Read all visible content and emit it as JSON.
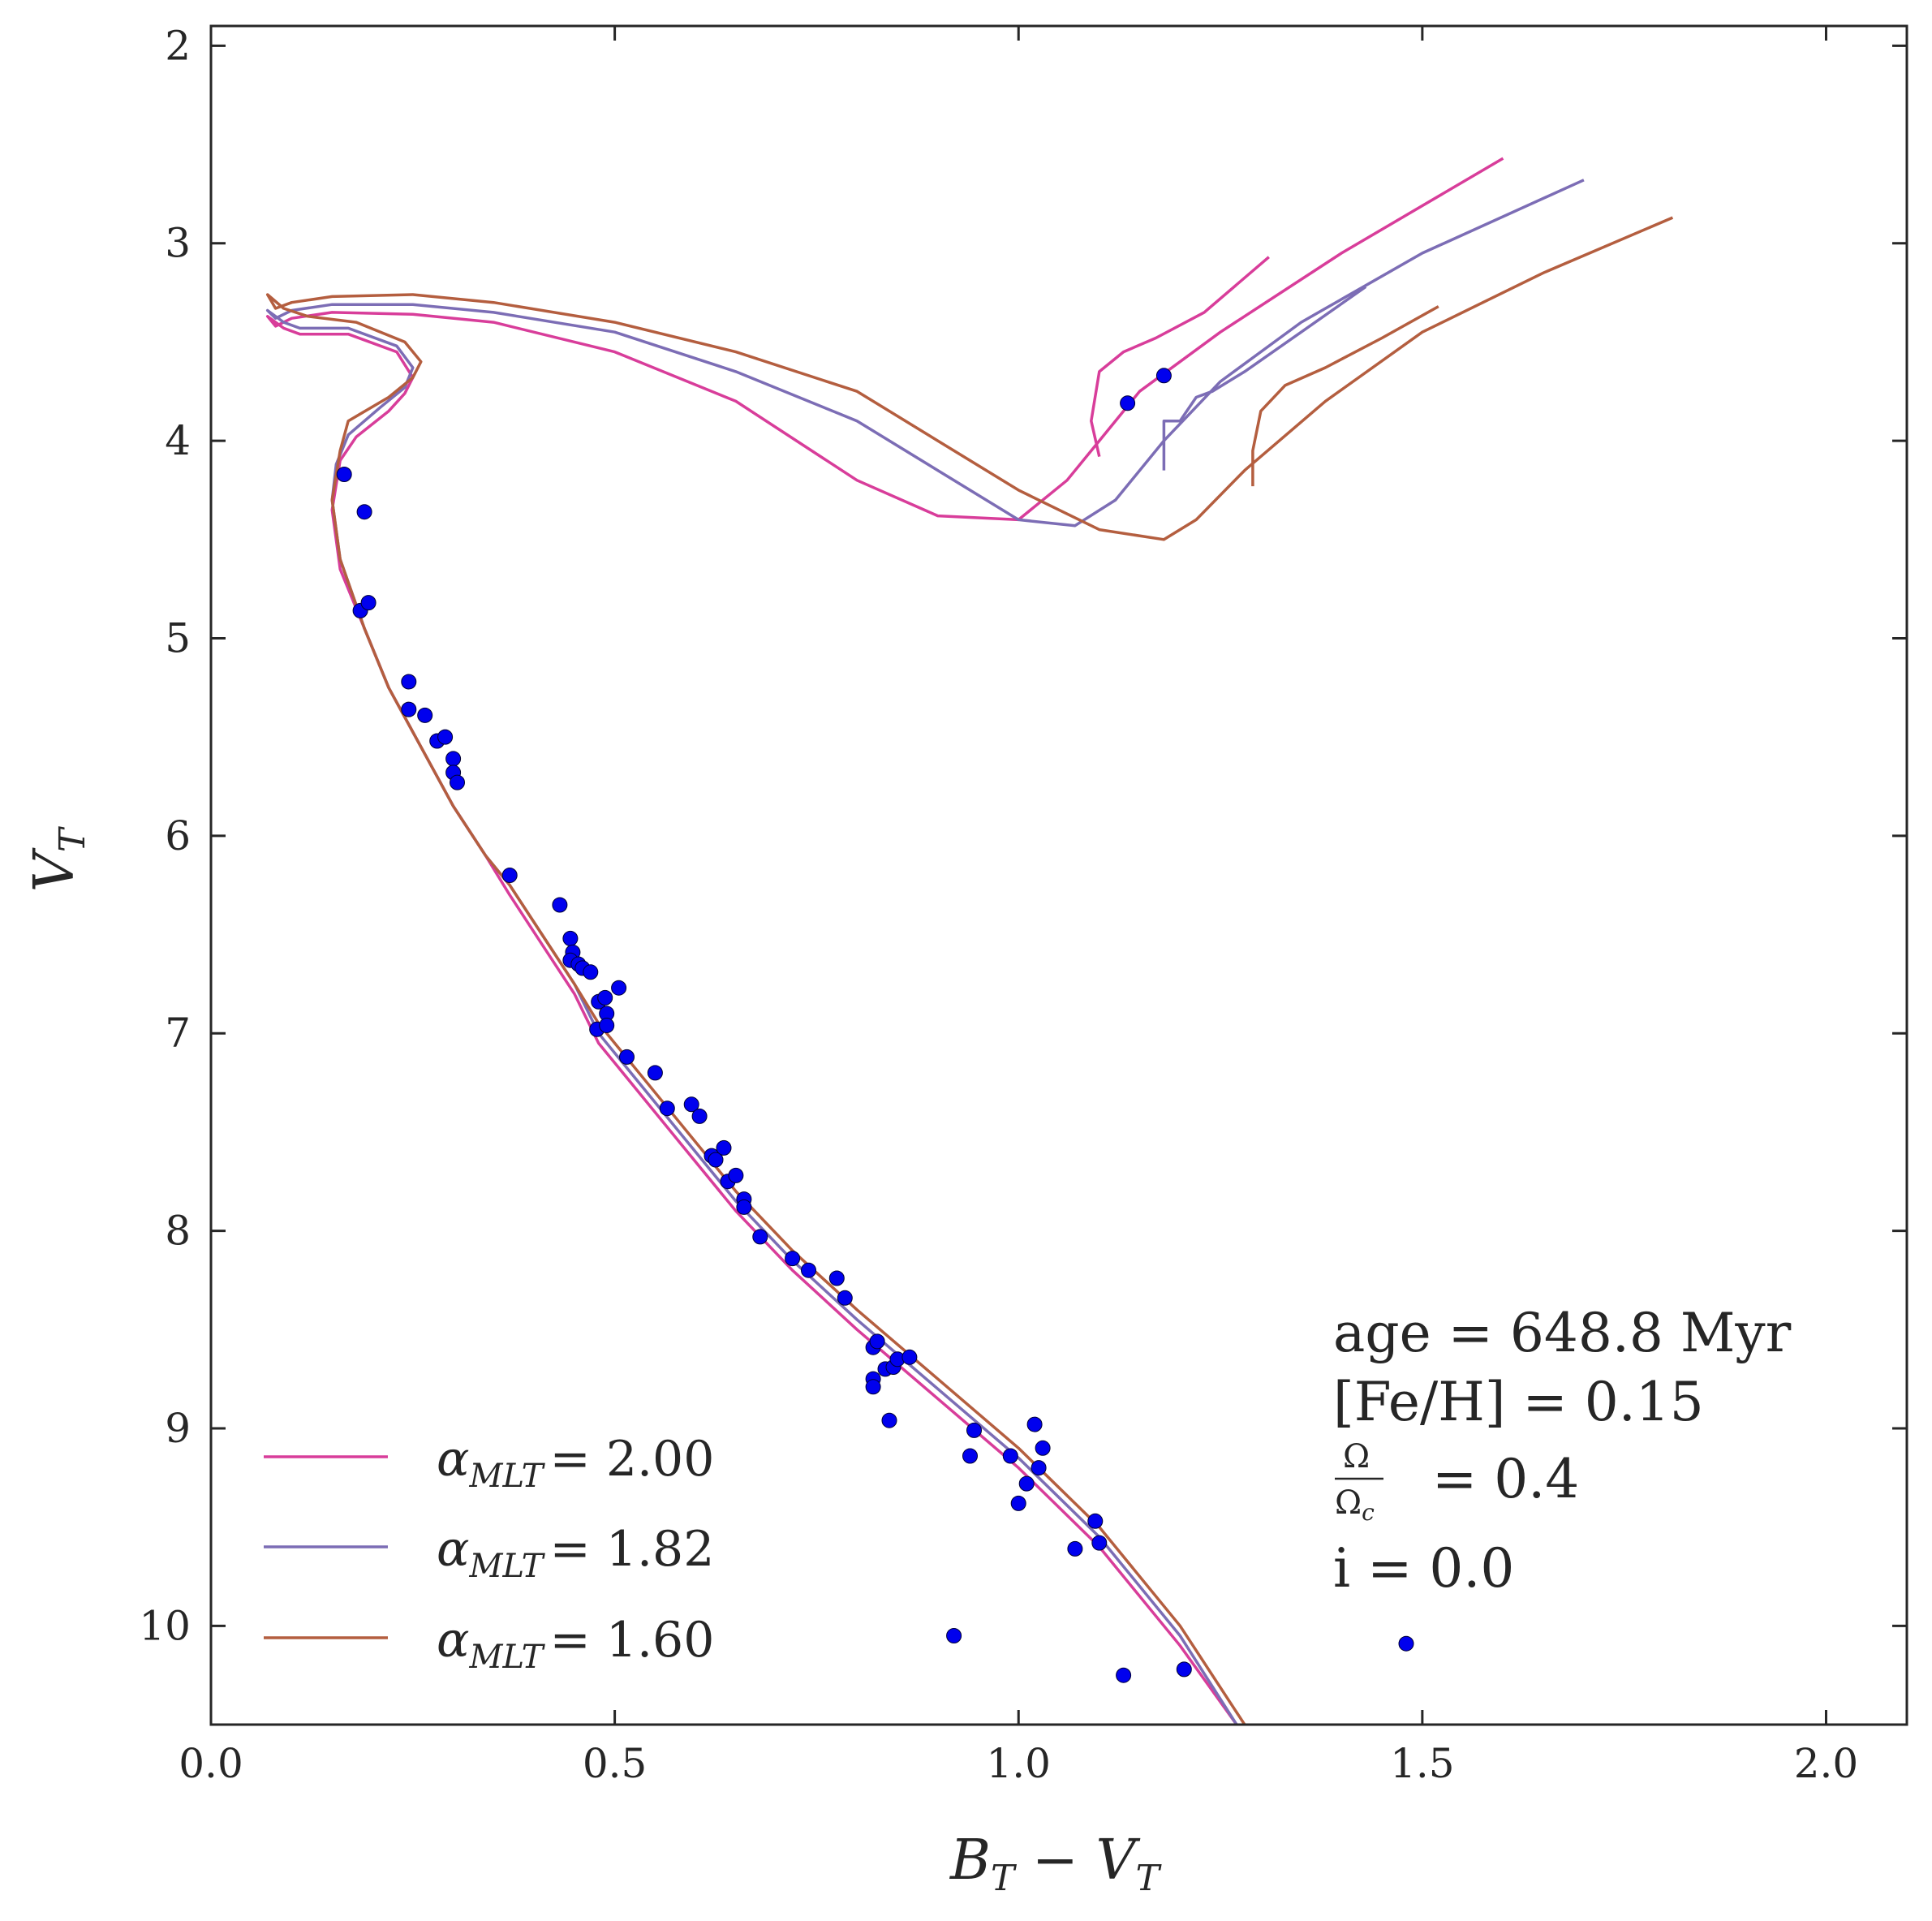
{
  "chart_data": {
    "type": "scatter",
    "xlabel": "B_T − V_T",
    "ylabel": "V_T",
    "xlim": [
      0.0,
      2.1
    ],
    "ylim": [
      10.5,
      1.9
    ],
    "y_inverted": true,
    "xticks": [
      0.0,
      0.5,
      1.0,
      1.5,
      2.0
    ],
    "xtick_labels": [
      "0.0",
      "0.5",
      "1.0",
      "1.5",
      "2.0"
    ],
    "yticks": [
      2,
      3,
      4,
      5,
      6,
      7,
      8,
      9,
      10
    ],
    "ytick_labels": [
      "2",
      "3",
      "4",
      "5",
      "6",
      "7",
      "8",
      "9",
      "10"
    ],
    "grid": false,
    "legend_position": "bottom-left",
    "annotations": {
      "age": "age = 648.8 Myr",
      "feh": "[Fe/H] = 0.15",
      "omega_num": "Ω",
      "omega_den": "Ω",
      "omega_den_sub": "c",
      "omega_value": "= 0.4",
      "inclination": "i = 0.0"
    },
    "series": [
      {
        "name": "α_MLT = 2.00",
        "legend_alpha": "α",
        "legend_sub": "MLT",
        "legend_value": "= 2.00",
        "color": "#d83d9a",
        "kind": "line",
        "x": [
          1.6,
          1.4,
          1.25,
          1.15,
          1.1,
          1.06,
          1.0,
          0.9,
          0.8,
          0.65,
          0.5,
          0.35,
          0.25,
          0.15,
          0.1,
          0.08,
          0.07,
          0.09,
          0.11,
          0.17,
          0.23,
          0.25,
          0.24,
          0.22,
          0.18,
          0.16,
          0.15,
          0.16,
          0.19,
          0.22,
          0.26,
          0.3,
          0.34,
          0.37,
          0.41,
          0.45,
          0.48,
          0.52,
          0.58,
          0.65,
          0.72,
          0.8,
          0.9,
          1.0,
          1.1,
          1.2,
          1.27
        ],
        "y": [
          2.57,
          3.05,
          3.45,
          3.75,
          4.0,
          4.2,
          4.4,
          4.38,
          4.2,
          3.8,
          3.55,
          3.4,
          3.36,
          3.35,
          3.38,
          3.42,
          3.37,
          3.43,
          3.46,
          3.46,
          3.55,
          3.68,
          3.76,
          3.85,
          3.98,
          4.1,
          4.35,
          4.65,
          4.95,
          5.25,
          5.55,
          5.85,
          6.1,
          6.3,
          6.55,
          6.8,
          7.05,
          7.25,
          7.55,
          7.9,
          8.2,
          8.5,
          8.85,
          9.2,
          9.6,
          10.1,
          10.5
        ],
        "branch_x": [
          1.1,
          1.09,
          1.1,
          1.13,
          1.17,
          1.23,
          1.31
        ],
        "branch_y": [
          4.08,
          3.9,
          3.65,
          3.55,
          3.48,
          3.35,
          3.07
        ]
      },
      {
        "name": "α_MLT = 1.82",
        "legend_alpha": "α",
        "legend_sub": "MLT",
        "legend_value": "= 1.82",
        "color": "#7c6db5",
        "kind": "line",
        "x": [
          1.7,
          1.5,
          1.35,
          1.25,
          1.18,
          1.12,
          1.07,
          1.0,
          0.9,
          0.8,
          0.65,
          0.5,
          0.35,
          0.25,
          0.15,
          0.1,
          0.08,
          0.07,
          0.09,
          0.11,
          0.17,
          0.23,
          0.25,
          0.24,
          0.21,
          0.17,
          0.155,
          0.15,
          0.16,
          0.19,
          0.22,
          0.26,
          0.3,
          0.34,
          0.37,
          0.41,
          0.45,
          0.48,
          0.52,
          0.58,
          0.65,
          0.72,
          0.8,
          0.9,
          1.0,
          1.1,
          1.2,
          1.27
        ],
        "y": [
          2.68,
          3.05,
          3.4,
          3.7,
          4.0,
          4.3,
          4.43,
          4.4,
          4.15,
          3.9,
          3.65,
          3.45,
          3.35,
          3.31,
          3.31,
          3.34,
          3.38,
          3.34,
          3.4,
          3.43,
          3.43,
          3.52,
          3.63,
          3.73,
          3.83,
          3.97,
          4.12,
          4.3,
          4.6,
          4.95,
          5.25,
          5.55,
          5.85,
          6.1,
          6.25,
          6.5,
          6.75,
          7.0,
          7.2,
          7.5,
          7.85,
          8.15,
          8.45,
          8.8,
          9.15,
          9.55,
          10.05,
          10.5
        ],
        "branch_x": [
          1.18,
          1.18,
          1.2,
          1.22,
          1.24,
          1.28,
          1.35,
          1.43
        ],
        "branch_y": [
          4.15,
          3.9,
          3.9,
          3.78,
          3.75,
          3.65,
          3.45,
          3.22
        ]
      },
      {
        "name": "α_MLT = 1.60",
        "legend_alpha": "α",
        "legend_sub": "MLT",
        "legend_value": "= 1.60",
        "color": "#b45e3f",
        "kind": "line",
        "x": [
          1.81,
          1.65,
          1.5,
          1.38,
          1.28,
          1.22,
          1.18,
          1.1,
          1.0,
          0.9,
          0.8,
          0.65,
          0.5,
          0.35,
          0.25,
          0.15,
          0.1,
          0.08,
          0.07,
          0.09,
          0.12,
          0.18,
          0.24,
          0.26,
          0.25,
          0.22,
          0.17,
          0.16,
          0.15,
          0.16,
          0.19,
          0.22,
          0.26,
          0.3,
          0.34,
          0.37,
          0.41,
          0.45,
          0.48,
          0.52,
          0.58,
          0.65,
          0.72,
          0.8,
          0.9,
          1.0,
          1.1,
          1.2,
          1.28
        ],
        "y": [
          2.87,
          3.15,
          3.45,
          3.8,
          4.15,
          4.4,
          4.5,
          4.45,
          4.25,
          4.0,
          3.75,
          3.55,
          3.4,
          3.3,
          3.26,
          3.27,
          3.3,
          3.33,
          3.26,
          3.33,
          3.37,
          3.4,
          3.5,
          3.6,
          3.68,
          3.78,
          3.9,
          4.05,
          4.3,
          4.6,
          4.95,
          5.25,
          5.55,
          5.85,
          6.1,
          6.25,
          6.5,
          6.75,
          6.95,
          7.15,
          7.45,
          7.8,
          8.1,
          8.4,
          8.75,
          9.1,
          9.5,
          10.0,
          10.5
        ],
        "branch_x": [
          1.29,
          1.29,
          1.3,
          1.33,
          1.38,
          1.45,
          1.52
        ],
        "branch_y": [
          4.23,
          4.05,
          3.85,
          3.72,
          3.63,
          3.48,
          3.32
        ]
      },
      {
        "name": "",
        "kind": "scatter",
        "color": "#0000ee",
        "points": [
          [
            0.165,
            4.17
          ],
          [
            0.19,
            4.36
          ],
          [
            0.185,
            4.86
          ],
          [
            0.195,
            4.82
          ],
          [
            0.245,
            5.22
          ],
          [
            0.245,
            5.36
          ],
          [
            0.265,
            5.39
          ],
          [
            0.28,
            5.52
          ],
          [
            0.29,
            5.5
          ],
          [
            0.3,
            5.61
          ],
          [
            0.3,
            5.68
          ],
          [
            0.305,
            5.73
          ],
          [
            0.37,
            6.2
          ],
          [
            0.432,
            6.35
          ],
          [
            0.445,
            6.52
          ],
          [
            0.448,
            6.59
          ],
          [
            0.445,
            6.63
          ],
          [
            0.455,
            6.65
          ],
          [
            0.46,
            6.67
          ],
          [
            0.47,
            6.69
          ],
          [
            0.48,
            6.84
          ],
          [
            0.488,
            6.82
          ],
          [
            0.478,
            6.98
          ],
          [
            0.49,
            6.9
          ],
          [
            0.49,
            6.96
          ],
          [
            0.505,
            6.77
          ],
          [
            0.515,
            7.12
          ],
          [
            0.55,
            7.2
          ],
          [
            0.565,
            7.38
          ],
          [
            0.595,
            7.36
          ],
          [
            0.605,
            7.42
          ],
          [
            0.62,
            7.62
          ],
          [
            0.625,
            7.64
          ],
          [
            0.635,
            7.58
          ],
          [
            0.64,
            7.75
          ],
          [
            0.65,
            7.72
          ],
          [
            0.66,
            7.84
          ],
          [
            0.66,
            7.88
          ],
          [
            0.68,
            8.03
          ],
          [
            0.72,
            8.14
          ],
          [
            0.74,
            8.2
          ],
          [
            0.775,
            8.24
          ],
          [
            0.785,
            8.34
          ],
          [
            0.82,
            8.59
          ],
          [
            0.825,
            8.56
          ],
          [
            0.82,
            8.75
          ],
          [
            0.82,
            8.79
          ],
          [
            0.835,
            8.7
          ],
          [
            0.84,
            8.96
          ],
          [
            0.845,
            8.69
          ],
          [
            0.85,
            8.65
          ],
          [
            0.865,
            8.64
          ],
          [
            0.92,
            10.05
          ],
          [
            0.94,
            9.14
          ],
          [
            0.945,
            9.01
          ],
          [
            0.99,
            9.14
          ],
          [
            1.0,
            9.38
          ],
          [
            1.01,
            9.28
          ],
          [
            1.02,
            8.98
          ],
          [
            1.025,
            9.2
          ],
          [
            1.03,
            9.1
          ],
          [
            1.07,
            9.61
          ],
          [
            1.095,
            9.47
          ],
          [
            1.1,
            9.58
          ],
          [
            1.13,
            10.25
          ],
          [
            1.205,
            10.22
          ],
          [
            1.48,
            10.09
          ],
          [
            1.135,
            3.81
          ],
          [
            1.18,
            3.67
          ]
        ]
      }
    ]
  }
}
